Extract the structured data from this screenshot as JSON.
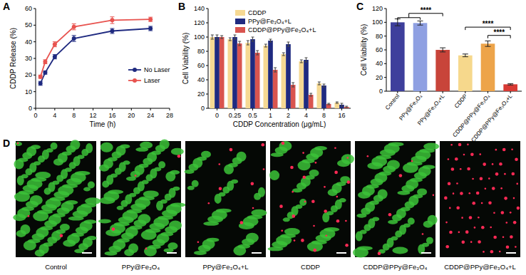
{
  "chart_data": [
    {
      "type": "line",
      "title": "A",
      "x_label": "Time (h)",
      "y_label": "CDDP Release (%)",
      "x": [
        1,
        2,
        4,
        8,
        16,
        24
      ],
      "xlim": [
        0,
        28
      ],
      "xticks": [
        0,
        4,
        8,
        12,
        16,
        20,
        24,
        28
      ],
      "ylim": [
        0,
        60
      ],
      "yticks": [
        0,
        10,
        20,
        30,
        40,
        50,
        60
      ],
      "marker": "circle",
      "legend": "right",
      "series": [
        {
          "name": "No Laser",
          "color": "#1f2a80",
          "values": [
            15,
            21.5,
            31,
            42,
            46.5,
            48
          ],
          "errors": [
            1.2,
            1,
            1.3,
            1.8,
            1.5,
            1.3
          ]
        },
        {
          "name": "Laser",
          "color": "#e8534f",
          "values": [
            19,
            28,
            38.5,
            49,
            53,
            53.5
          ],
          "errors": [
            1,
            1.2,
            1.5,
            1.8,
            2,
            1.3
          ]
        }
      ]
    },
    {
      "type": "bar",
      "title": "B",
      "x_label": "CDDP Concentration (μg/mL)",
      "y_label": "Cell Viability (%)",
      "categories": [
        "0",
        "0.25",
        "0.5",
        "1",
        "2",
        "4",
        "8",
        "16"
      ],
      "ylim": [
        0,
        140
      ],
      "yticks": [
        0,
        20,
        40,
        60,
        80,
        100,
        120,
        140
      ],
      "legend": "top-left",
      "series": [
        {
          "name": "CDDP",
          "color": "#f6d993",
          "values": [
            100,
            97,
            92,
            88,
            76,
            66,
            35,
            8
          ],
          "errors": [
            3,
            2,
            3,
            2,
            2,
            2,
            2,
            1
          ]
        },
        {
          "name": "PPy@Fe₃O₄+L",
          "color": "#1f2a80",
          "values": [
            100,
            100,
            97,
            95,
            90,
            68,
            32,
            5
          ],
          "errors": [
            3,
            3,
            3,
            2,
            3,
            3,
            2,
            2
          ]
        },
        {
          "name": "CDDP@PPy@Fe₃O₄+L",
          "color": "#d9544f",
          "values": [
            100,
            91,
            78,
            54,
            33,
            19,
            6,
            2
          ],
          "errors": [
            2,
            3,
            3,
            3,
            3,
            2,
            1,
            1
          ]
        }
      ]
    },
    {
      "type": "bar",
      "title": "C",
      "y_label": "Cell Viability (%)",
      "categories": [
        "Control",
        "PPy@Fe₃O₄",
        "PPy@Fe₃O₄+L",
        "CDDP",
        "CDDP@PPy@Fe₃O₄",
        "CDDP@PPy@Fe₃O₄+L"
      ],
      "values": [
        100,
        99,
        60,
        52,
        69,
        10
      ],
      "errors": [
        5,
        3,
        3,
        2,
        4,
        1
      ],
      "colors": [
        "#3e3f9c",
        "#8fa0e2",
        "#c8443a",
        "#f6d88c",
        "#eda44a",
        "#d83a34"
      ],
      "ylim": [
        0,
        120
      ],
      "yticks": [
        0,
        20,
        40,
        60,
        80,
        100,
        120
      ],
      "annotations": [
        {
          "label": "****",
          "left": [
            0,
            1
          ],
          "right": 2
        },
        {
          "label": "****",
          "left": [
            3
          ],
          "right": 5
        },
        {
          "label": "****",
          "left": [
            4
          ],
          "right": 5
        }
      ]
    }
  ],
  "images": {
    "title": "D",
    "labels": [
      "Control",
      "PPy@Fe₃O₄",
      "PPy@Fe₃O₄+L",
      "CDDP",
      "CDDP@PPy@Fe₃O₄",
      "CDDP@PPy@Fe₃O₄+L"
    ]
  }
}
